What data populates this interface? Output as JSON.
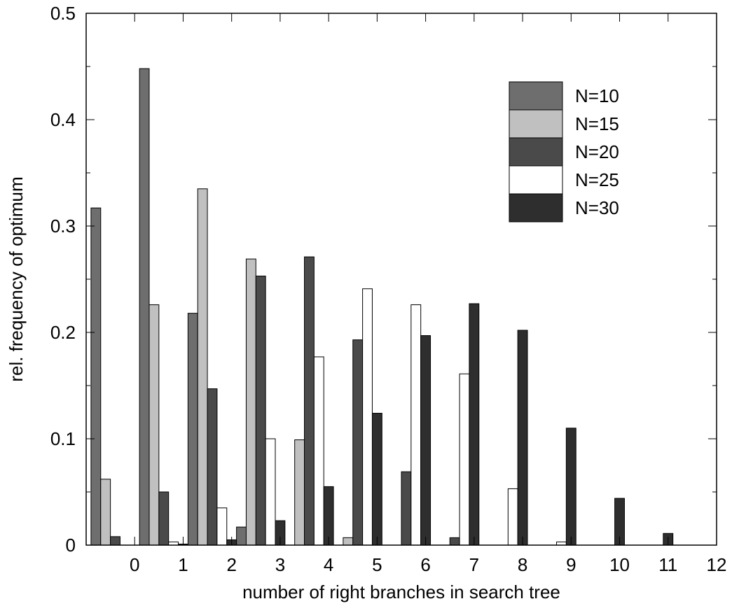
{
  "chart_data": {
    "type": "bar",
    "title": "",
    "xlabel": "number of right branches in search tree",
    "ylabel": "rel. frequency of optimum",
    "xlim": [
      -1,
      12
    ],
    "ylim": [
      0,
      0.5
    ],
    "x_ticks": [
      "0",
      "1",
      "2",
      "3",
      "4",
      "5",
      "6",
      "7",
      "8",
      "9",
      "10",
      "11",
      "12"
    ],
    "y_ticks": [
      "0",
      "0.1",
      "0.2",
      "0.3",
      "0.4",
      "0.5"
    ],
    "grid": false,
    "legend_position": "top-right",
    "categories": [
      "0",
      "1",
      "2",
      "3",
      "4",
      "5",
      "6",
      "7",
      "8",
      "9",
      "10",
      "11"
    ],
    "series": [
      {
        "name": "N=10",
        "color": "#6e6e6e",
        "values": [
          0.317,
          0.448,
          0.218,
          0.017,
          0,
          0,
          0,
          0,
          0,
          0,
          0,
          0
        ]
      },
      {
        "name": "N=15",
        "color": "#c0c0c0",
        "values": [
          0.062,
          0.226,
          0.335,
          0.269,
          0.099,
          0.007,
          0,
          0,
          0,
          0,
          0,
          0
        ]
      },
      {
        "name": "N=20",
        "color": "#4a4a4a",
        "values": [
          0.008,
          0.05,
          0.147,
          0.253,
          0.271,
          0.193,
          0.069,
          0.007,
          0,
          0,
          0,
          0
        ]
      },
      {
        "name": "N=25",
        "color": "#ffffff",
        "values": [
          0,
          0.003,
          0.035,
          0.1,
          0.177,
          0.241,
          0.226,
          0.161,
          0.053,
          0.003,
          0,
          0
        ]
      },
      {
        "name": "N=30",
        "color": "#2e2e2e",
        "values": [
          0,
          0.001,
          0.005,
          0.023,
          0.055,
          0.124,
          0.197,
          0.227,
          0.202,
          0.11,
          0.044,
          0.011
        ]
      }
    ]
  }
}
